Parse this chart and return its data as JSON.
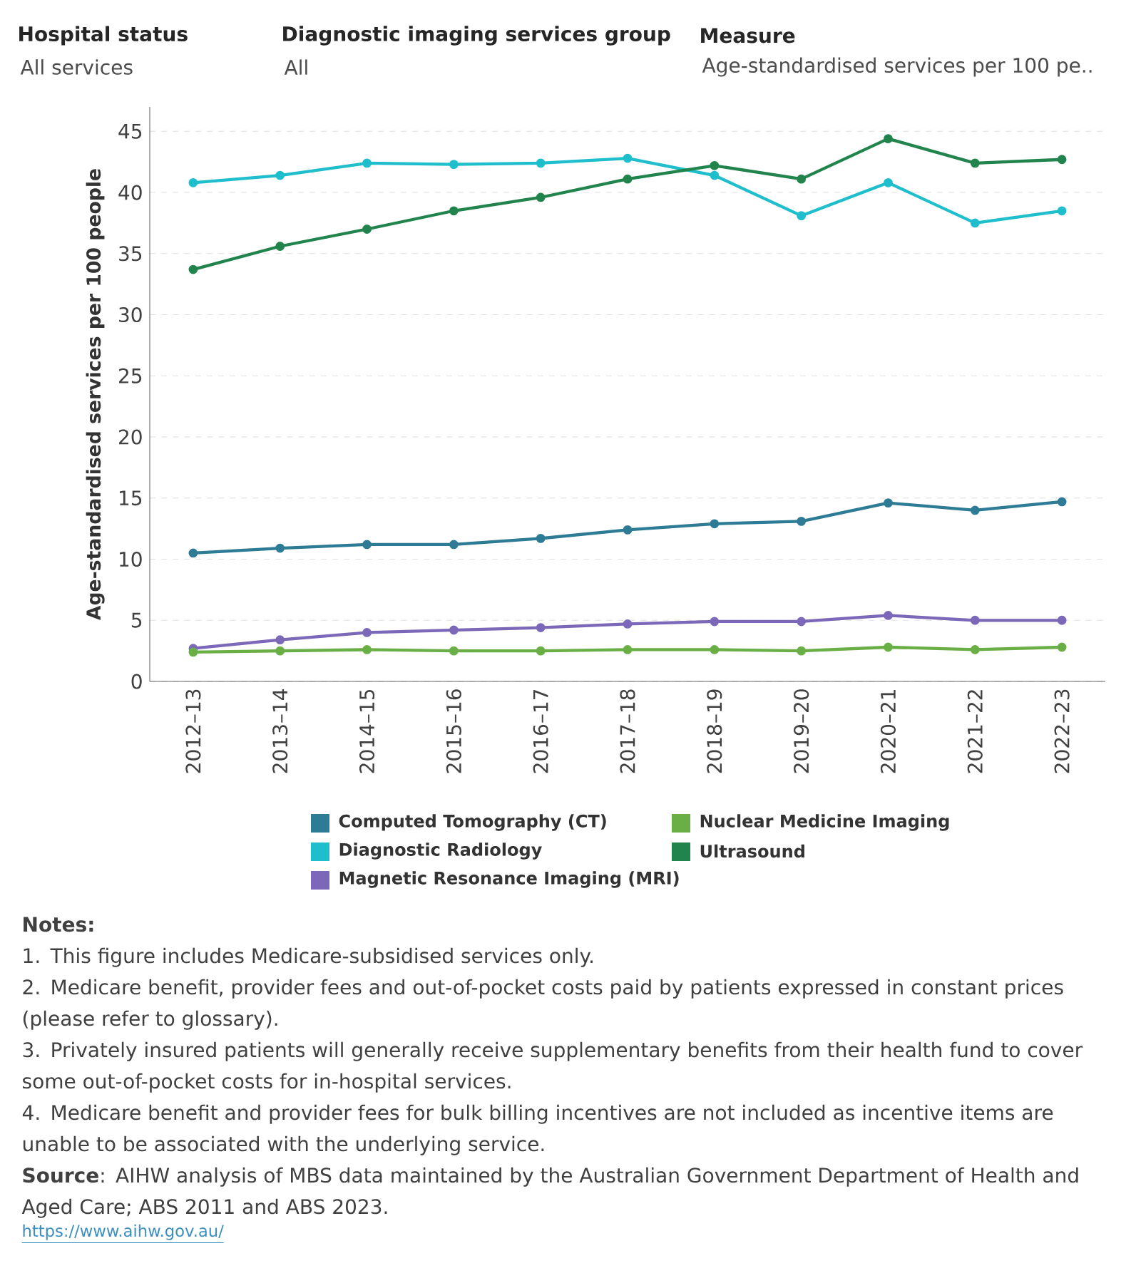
{
  "chart_data": {
    "type": "line",
    "ylabel": "Age-standardised services per 100 people",
    "categories": [
      "2012–13",
      "2013–14",
      "2014–15",
      "2015–16",
      "2016–17",
      "2017–18",
      "2018–19",
      "2019–20",
      "2020–21",
      "2021–22",
      "2022–23"
    ],
    "series": [
      {
        "name": "Computed Tomography (CT)",
        "color": "#2e7b96",
        "values": [
          10.5,
          10.9,
          11.2,
          11.2,
          11.7,
          12.4,
          12.9,
          13.1,
          14.6,
          14.0,
          14.7
        ]
      },
      {
        "name": "Diagnostic Radiology",
        "color": "#1ebecc",
        "values": [
          40.8,
          41.4,
          42.4,
          42.3,
          42.4,
          42.8,
          41.4,
          38.1,
          40.8,
          37.5,
          38.5
        ]
      },
      {
        "name": "Magnetic Resonance Imaging (MRI)",
        "color": "#7b68b8",
        "values": [
          2.7,
          3.4,
          4.0,
          4.2,
          4.4,
          4.7,
          4.9,
          4.9,
          5.4,
          5.0,
          5.0
        ]
      },
      {
        "name": "Nuclear Medicine Imaging",
        "color": "#6aaf46",
        "values": [
          2.4,
          2.5,
          2.6,
          2.5,
          2.5,
          2.6,
          2.6,
          2.5,
          2.8,
          2.6,
          2.8
        ]
      },
      {
        "name": "Ultrasound",
        "color": "#21844c",
        "values": [
          33.7,
          35.6,
          37.0,
          38.5,
          39.6,
          41.1,
          42.2,
          41.1,
          44.4,
          42.4,
          42.7
        ]
      }
    ],
    "ylim": [
      0,
      47
    ],
    "yticks": [
      0,
      5,
      10,
      15,
      20,
      25,
      30,
      35,
      40,
      45
    ],
    "grid": "y",
    "legend": "bottom",
    "marker": "circle",
    "line_style": "solid",
    "annotations": [
      "**Hospital status**",
      "All services",
      "**Diagnostic imaging services group**",
      "All",
      "**Measure**",
      "Age-standardised services per 100 pe..",
      "**Notes:**",
      "1. This figure includes Medicare-subsidised services only.",
      "2. Medicare benefit, provider fees and out-of-pocket costs paid by patients expressed in constant prices (please refer to glossary).",
      "3. Privately insured patients will generally receive supplementary benefits from their health fund to cover some out-of-pocket costs for in-hospital services.",
      "4. Medicare benefit and provider fees for bulk billing incentives are not included as incentive items are unable to be associated with the underlying service.",
      "**Source**: AIHW analysis of MBS data maintained by the Australian Government Department of Health and Aged Care; ABS 2011 and ABS 2023.",
      "https://www.aihw.gov.au/"
    ]
  }
}
